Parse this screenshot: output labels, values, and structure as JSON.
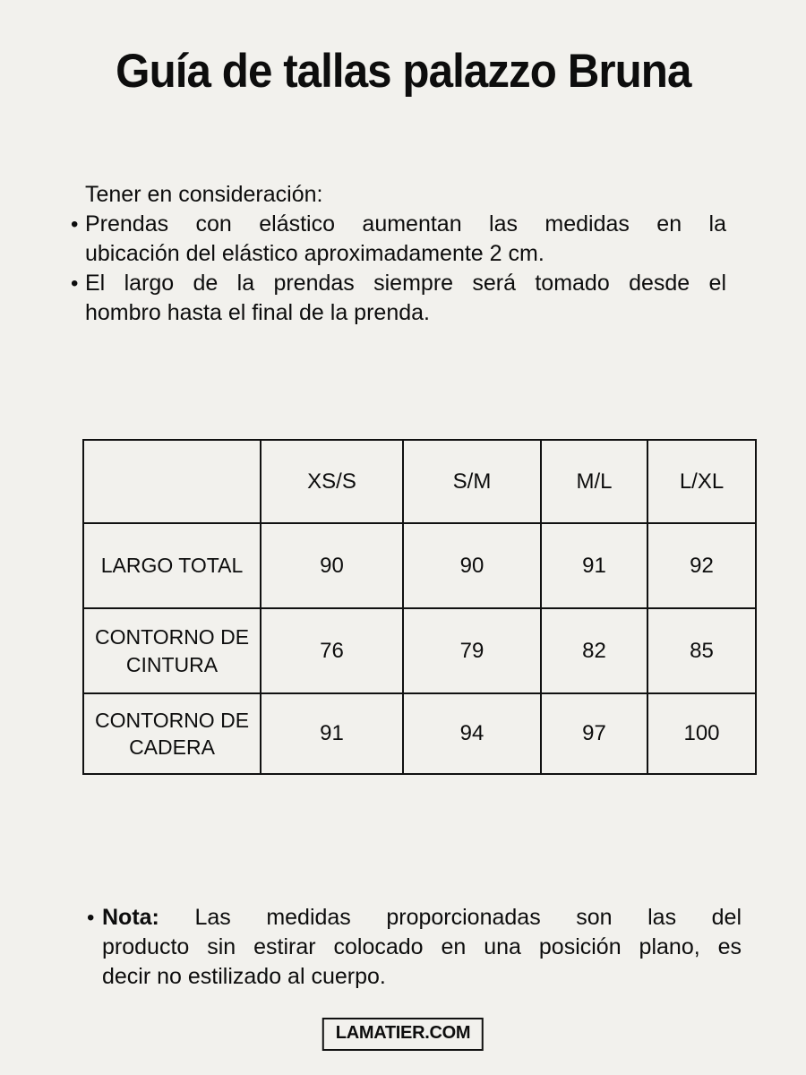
{
  "page": {
    "title": "Guía de tallas palazzo Bruna",
    "background_color": "#f2f1ed",
    "text_color": "#0d0d0d",
    "border_color": "#111111"
  },
  "intro": {
    "heading": "Tener en consideración:",
    "bullet_char": "•",
    "bullet1_line1": "Prendas con elástico aumentan las medidas en la",
    "bullet1_line2": "ubicación del elástico aproximadamente 2 cm.",
    "bullet2_line1": "El largo de la prendas siempre será tomado desde el",
    "bullet2_line2": "hombro hasta el final de la prenda."
  },
  "table": {
    "col_headers": [
      "XS/S",
      "S/M",
      "M/L",
      "L/XL"
    ],
    "rows": [
      {
        "label": "LARGO TOTAL",
        "values": [
          "90",
          "90",
          "91",
          "92"
        ]
      },
      {
        "label": "CONTORNO DE CINTURA",
        "values": [
          "76",
          "79",
          "82",
          "85"
        ]
      },
      {
        "label": "CONTORNO DE CADERA",
        "values": [
          "91",
          "94",
          "97",
          "100"
        ]
      }
    ]
  },
  "note": {
    "bullet_char": "•",
    "bold_label": "Nota:",
    "line1_rest": "Las medidas proporcionadas son las del",
    "line2": "producto sin estirar colocado en una posición plano, es",
    "line3": "decir no estilizado al cuerpo."
  },
  "footer": {
    "brand": "LAMATIER.COM"
  }
}
